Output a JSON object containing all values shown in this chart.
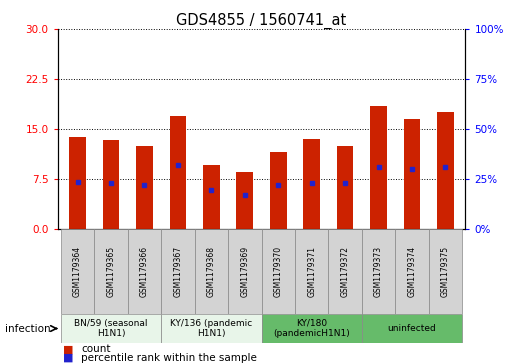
{
  "title": "GDS4855 / 1560741_at",
  "samples": [
    "GSM1179364",
    "GSM1179365",
    "GSM1179366",
    "GSM1179367",
    "GSM1179368",
    "GSM1179369",
    "GSM1179370",
    "GSM1179371",
    "GSM1179372",
    "GSM1179373",
    "GSM1179374",
    "GSM1179375"
  ],
  "counts": [
    13.8,
    13.3,
    12.5,
    17.0,
    9.5,
    8.5,
    11.5,
    13.5,
    12.5,
    18.5,
    16.5,
    17.5
  ],
  "percentiles_left": [
    7.0,
    6.8,
    6.5,
    9.5,
    5.8,
    5.0,
    6.5,
    6.8,
    6.8,
    9.2,
    9.0,
    9.2
  ],
  "bar_color": "#cc2200",
  "marker_color": "#2222cc",
  "ylim_left": [
    0,
    30
  ],
  "ylim_right": [
    0,
    100
  ],
  "yticks_left": [
    0,
    7.5,
    15,
    22.5,
    30
  ],
  "yticks_right": [
    0,
    25,
    50,
    75,
    100
  ],
  "groups": [
    {
      "label": "BN/59 (seasonal\nH1N1)",
      "start": 0,
      "end": 3,
      "color": "#e8f5e9"
    },
    {
      "label": "KY/136 (pandemic\nH1N1)",
      "start": 3,
      "end": 6,
      "color": "#e8f5e9"
    },
    {
      "label": "KY/180\n(pandemicH1N1)",
      "start": 6,
      "end": 9,
      "color": "#66bb6a"
    },
    {
      "label": "uninfected",
      "start": 9,
      "end": 12,
      "color": "#66bb6a"
    }
  ],
  "infection_label": "infection",
  "legend_count_label": "count",
  "legend_percentile_label": "percentile rank within the sample",
  "table_cell_color": "#d3d3d3",
  "bar_width": 0.5
}
